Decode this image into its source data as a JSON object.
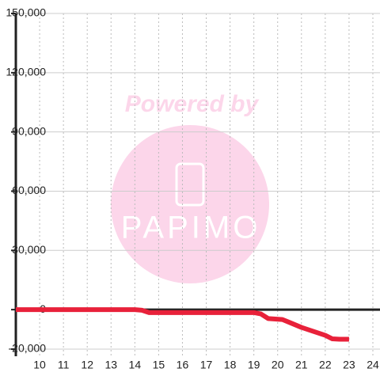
{
  "chart_data": {
    "type": "line",
    "watermark": {
      "text": "Powered by",
      "logo": "PAPIMO"
    },
    "x": [
      9,
      14,
      14.3,
      14.6,
      19,
      19.3,
      19.6,
      20.2,
      20.5,
      21,
      21.5,
      22,
      22.3,
      22.6,
      23
    ],
    "series": [
      {
        "color": "#e8213a",
        "values": [
          0,
          0,
          -300,
          -1500,
          -1500,
          -2200,
          -4500,
          -5000,
          -6500,
          -9000,
          -11000,
          -13000,
          -14800,
          -15000,
          -15000
        ]
      }
    ],
    "xlim": [
      9,
      24.3
    ],
    "xticks": [
      10,
      11,
      12,
      13,
      14,
      15,
      16,
      17,
      18,
      19,
      20,
      21,
      22,
      23,
      24
    ],
    "ylim": [
      -20000,
      150000
    ],
    "yticks": [
      {
        "value": -20000,
        "label": "-20,000"
      },
      0,
      {
        "value": 30000,
        "label": "30,000"
      },
      {
        "value": 60000,
        "label": "60,000"
      },
      {
        "value": 90000,
        "label": "90,000"
      },
      {
        "value": 120000,
        "label": "120,000"
      },
      {
        "value": 150000,
        "label": "150,000"
      }
    ],
    "grid": true
  }
}
